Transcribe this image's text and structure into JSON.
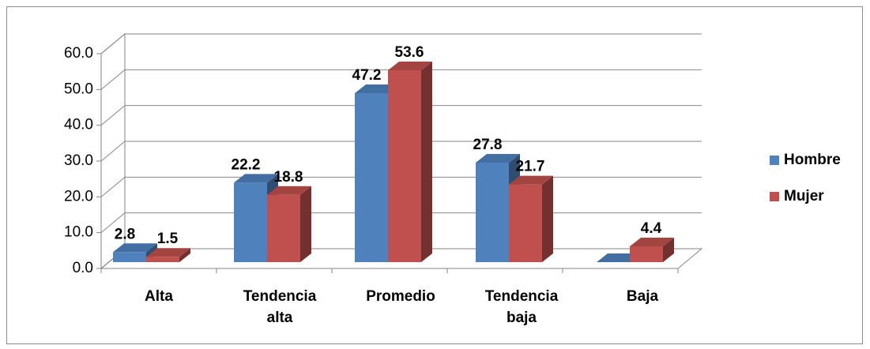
{
  "chart_data": {
    "type": "bar3d",
    "categories": [
      "Alta",
      "Tendencia alta",
      "Promedio",
      "Tendencia baja",
      "Baja"
    ],
    "series": [
      {
        "name": "Hombre",
        "color": "#4f81bd",
        "values": [
          2.8,
          22.2,
          47.2,
          27.8,
          0
        ],
        "value_labels": [
          "2.8",
          "22.2",
          "47.2",
          "27.8",
          null
        ]
      },
      {
        "name": "Mujer",
        "color": "#c0504d",
        "values": [
          1.5,
          18.8,
          53.6,
          21.7,
          4.4
        ],
        "value_labels": [
          "1.5",
          "18.8",
          "53.6",
          "21.7",
          "4.4"
        ]
      }
    ],
    "ylim": [
      0,
      60
    ],
    "yticks": [
      {
        "value": 0,
        "label": "0.0"
      },
      {
        "value": 10,
        "label": "10.0"
      },
      {
        "value": 20,
        "label": "20.0"
      },
      {
        "value": 30,
        "label": "30.0"
      },
      {
        "value": 40,
        "label": "40.0"
      },
      {
        "value": 50,
        "label": "50.0"
      },
      {
        "value": 60,
        "label": "60.0"
      }
    ],
    "grid": true,
    "legend": "right"
  }
}
